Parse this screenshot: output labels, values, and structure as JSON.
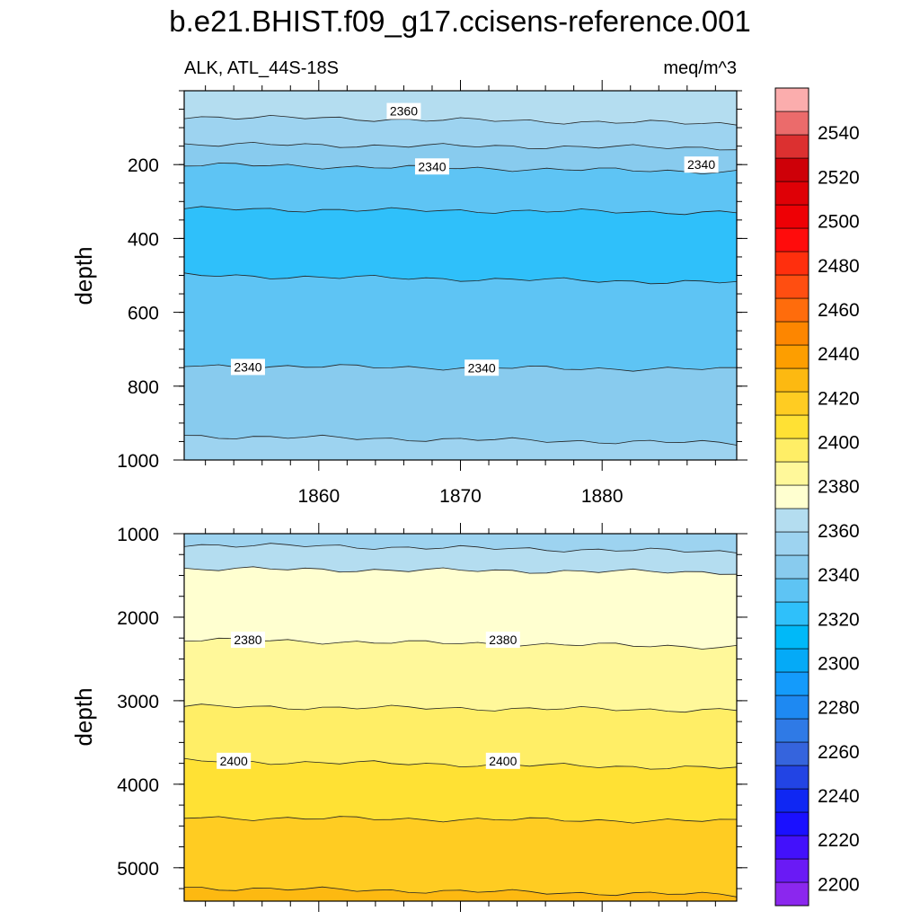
{
  "chart_data": {
    "type": "heatmap",
    "title": "b.e21.BHIST.f09_g17.ccisens-reference.001",
    "subtitle_left": "ALK, ATL_44S-18S",
    "subtitle_right": "meq/m^3",
    "xlabel": "",
    "ylabel": "depth",
    "x_range": [
      1850.5,
      1889.5
    ],
    "x_tick_labels": [
      "1860",
      "1870",
      "1880"
    ],
    "x_ticks": [
      1860,
      1870,
      1880
    ],
    "panels": [
      {
        "name": "upper",
        "ylim": [
          0,
          1000
        ],
        "y_ticks": [
          200,
          400,
          600,
          800,
          1000
        ],
        "y_tick_labels": [
          "200",
          "400",
          "600",
          "800",
          "1000"
        ],
        "bands": [
          {
            "from": 0,
            "to": 70,
            "color": "#B4DDF0",
            "range": "2360-2370"
          },
          {
            "from": 70,
            "to": 145,
            "color": "#9DD3F0",
            "range": "2350-2360"
          },
          {
            "from": 145,
            "to": 200,
            "color": "#88CBEE",
            "range": "2340-2350"
          },
          {
            "from": 200,
            "to": 320,
            "color": "#5EC4F4",
            "range": "2330-2340"
          },
          {
            "from": 320,
            "to": 500,
            "color": "#2FC0FA",
            "range": "2320-2330"
          },
          {
            "from": 500,
            "to": 745,
            "color": "#5EC4F4",
            "range": "2330-2340"
          },
          {
            "from": 745,
            "to": 935,
            "color": "#88CBEE",
            "range": "2340-2350"
          },
          {
            "from": 935,
            "to": 1000,
            "color": "#9DD3F0",
            "range": "2350-2360"
          }
        ],
        "contour_labels": [
          {
            "text": "2360",
            "x": 1866,
            "depth": 55
          },
          {
            "text": "2340",
            "x": 1868,
            "depth": 205
          },
          {
            "text": "2340",
            "x": 1887,
            "depth": 200
          },
          {
            "text": "2340",
            "x": 1855,
            "depth": 748
          },
          {
            "text": "2340",
            "x": 1871.5,
            "depth": 750
          }
        ]
      },
      {
        "name": "lower",
        "ylim": [
          1000,
          5400
        ],
        "y_ticks": [
          1000,
          2000,
          3000,
          4000,
          5000
        ],
        "y_tick_labels": [
          "1000",
          "2000",
          "3000",
          "4000",
          "5000"
        ],
        "bands": [
          {
            "from": 1000,
            "to": 1130,
            "color": "#9DD3F0",
            "range": "2350-2360"
          },
          {
            "from": 1130,
            "to": 1420,
            "color": "#B4DDF0",
            "range": "2360-2370"
          },
          {
            "from": 1420,
            "to": 2270,
            "color": "#FFFFD0",
            "range": "2370-2380"
          },
          {
            "from": 2270,
            "to": 3070,
            "color": "#FFF89A",
            "range": "2380-2390"
          },
          {
            "from": 3070,
            "to": 3720,
            "color": "#FFEE66",
            "range": "2390-2400"
          },
          {
            "from": 3720,
            "to": 4400,
            "color": "#FFE134",
            "range": "2400-2410"
          },
          {
            "from": 4400,
            "to": 5240,
            "color": "#FFCC22",
            "range": "2410-2420"
          },
          {
            "from": 5240,
            "to": 5400,
            "color": "#FDB911",
            "range": "2420-2430"
          }
        ],
        "contour_labels": [
          {
            "text": "2380",
            "x": 1855,
            "depth": 2270
          },
          {
            "text": "2380",
            "x": 1873,
            "depth": 2270
          },
          {
            "text": "2400",
            "x": 1854,
            "depth": 3720
          },
          {
            "text": "2400",
            "x": 1873,
            "depth": 3720
          }
        ]
      }
    ],
    "colorbar": {
      "min": 2190,
      "max": 2560,
      "step": 10,
      "labels": [
        "2200",
        "2220",
        "2240",
        "2260",
        "2280",
        "2300",
        "2320",
        "2340",
        "2360",
        "2380",
        "2400",
        "2420",
        "2440",
        "2460",
        "2480",
        "2500",
        "2520",
        "2540"
      ],
      "colors": [
        "#8B27EE",
        "#6A1AF5",
        "#4311FB",
        "#1A10FF",
        "#0F27F3",
        "#2244E4",
        "#3564DD",
        "#2F7AE6",
        "#1E89F2",
        "#149BFB",
        "#05AAF7",
        "#00B9F8",
        "#2FC0FA",
        "#5EC4F4",
        "#88CBEE",
        "#9DD3F0",
        "#B4DDF0",
        "#FFFFD0",
        "#FFF89A",
        "#FFEE66",
        "#FFE134",
        "#FFCC22",
        "#FDB911",
        "#FD9E00",
        "#FD8600",
        "#FF6C0C",
        "#FF4E11",
        "#FF2F0D",
        "#FF0C0C",
        "#EE0005",
        "#DF0006",
        "#CE0008",
        "#DC3030",
        "#EB6B6B",
        "#FBADAD"
      ]
    }
  }
}
